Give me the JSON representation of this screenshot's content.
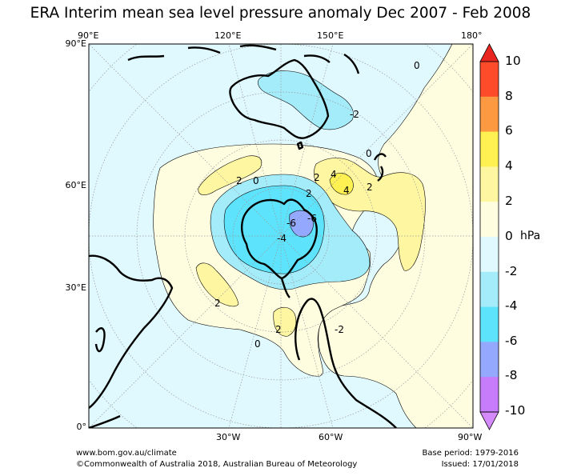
{
  "title": "ERA Interim mean sea level pressure anomaly Dec 2007 - Feb 2008",
  "map": {
    "top_labels": [
      "90°E",
      "120°E",
      "150°E",
      "180°"
    ],
    "left_labels": [
      "90°E",
      "60°E",
      "30°E",
      "0°"
    ],
    "bottom_labels": [
      "30°W",
      "60°W",
      "90°W"
    ],
    "contour_labels": [
      "0",
      "0",
      "2",
      "0",
      "2",
      "2",
      "4",
      "4",
      "2",
      "-2",
      "-6",
      "-6",
      "-4",
      "2",
      "2",
      "0",
      "-2"
    ]
  },
  "colorbar": {
    "ticks": [
      "10",
      "8",
      "6",
      "4",
      "2",
      "0",
      "-2",
      "-4",
      "-6",
      "-8",
      "-10"
    ],
    "unit": "hPa",
    "colors": [
      "#e8261f",
      "#fe4b2a",
      "#fd9a41",
      "#fef151",
      "#fef6a1",
      "#fffde0",
      "#e0f9fe",
      "#a5ecfb",
      "#5ee3fd",
      "#94a8fd",
      "#c77cfc",
      "#d58afc"
    ]
  },
  "footer": {
    "left1": "www.bom.gov.au/climate",
    "left2": "©Commonwealth of Australia 2018, Australian Bureau of Meteorology",
    "right1": "Base period: 1979-2016",
    "right2": "Issued: 17/01/2018"
  }
}
